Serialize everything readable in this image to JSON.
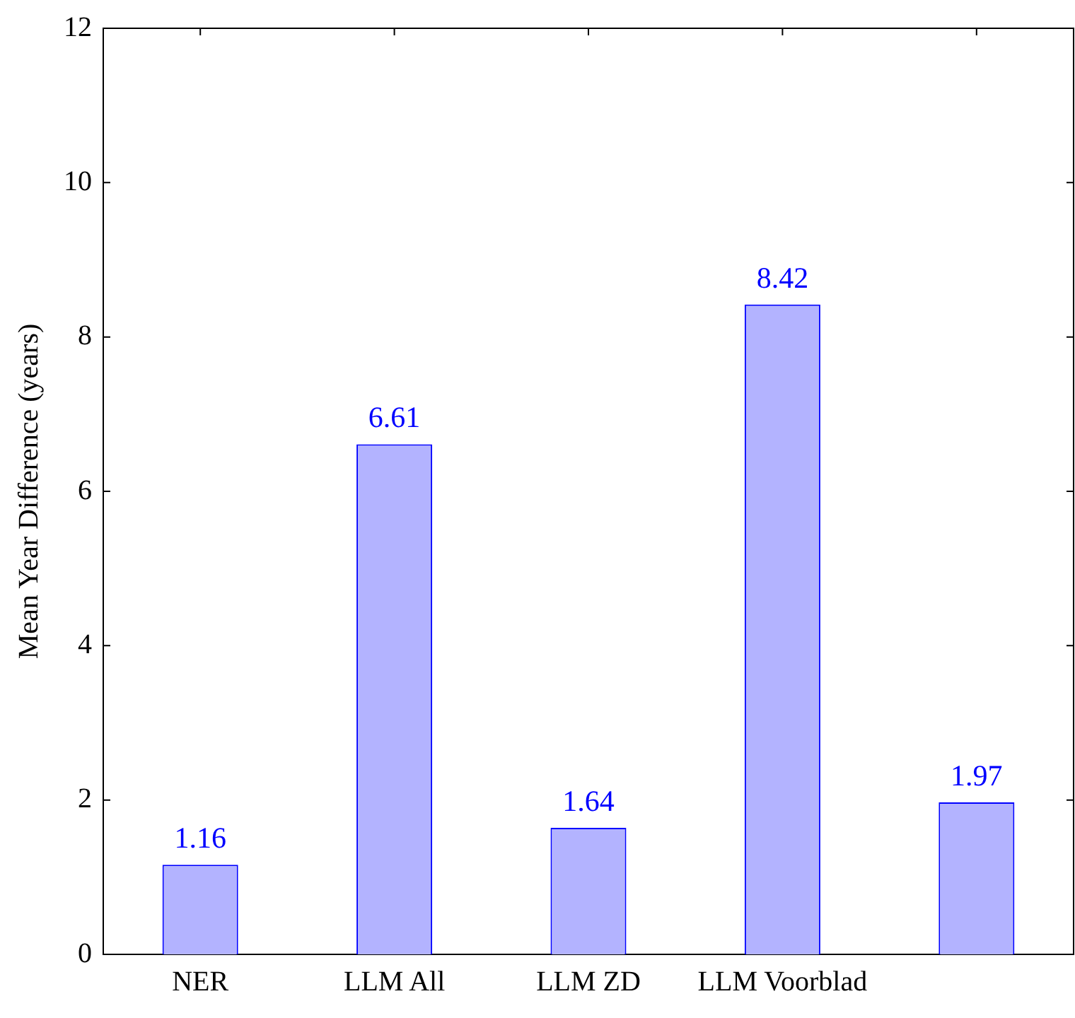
{
  "chart_data": {
    "type": "bar",
    "ylabel": "Mean Year Difference (years)",
    "categories": [
      "NER",
      "LLM All",
      "LLM ZD",
      "LLM Voorblad",
      null
    ],
    "color": "#b3b3ff",
    "values": [
      1.16,
      6.61,
      1.64,
      8.42,
      1.97
    ],
    "ylim": [
      0,
      12
    ],
    "yticks": [
      0,
      2,
      4,
      6,
      8,
      10,
      12
    ],
    "data_labels": true,
    "grid": false,
    "legend": false
  }
}
